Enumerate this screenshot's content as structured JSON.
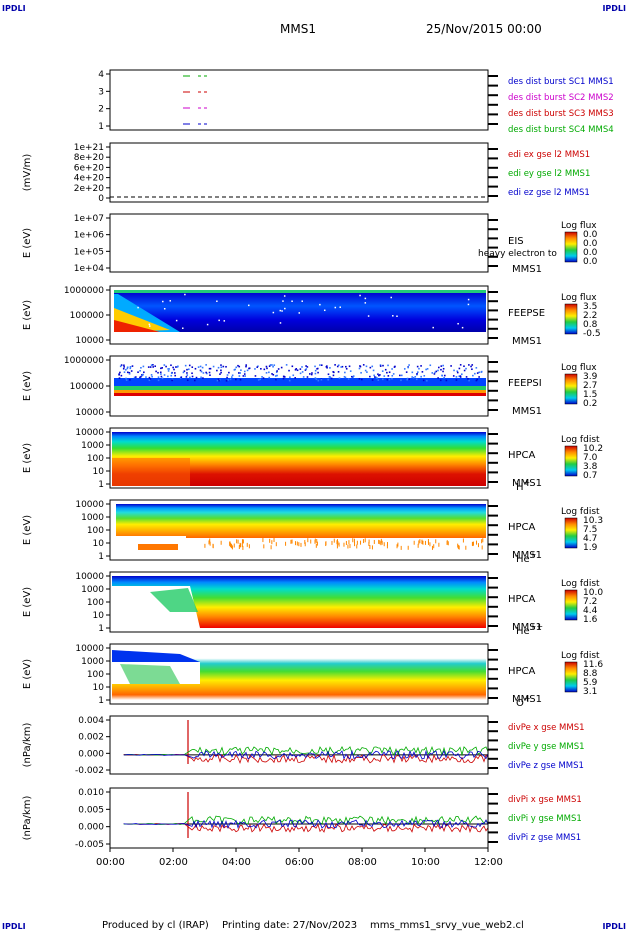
{
  "corner_labels": [
    "IPDLI",
    "IPDLI",
    "IPDLI",
    "IPDLI"
  ],
  "header": {
    "mission": "MMS1",
    "date": "25/Nov/2015 00:00"
  },
  "footer": {
    "produced_by": "Produced by cl (IRAP)",
    "printing_date": "Printing date: 27/Nov/2023",
    "file": "mms_mms1_srvy_vue_web2.cl"
  },
  "x_ticks": [
    "00:00",
    "02:00",
    "04:00",
    "06:00",
    "08:00",
    "10:00",
    "12:00"
  ],
  "chart_data": [
    {
      "type": "line",
      "panel": "dist-burst",
      "yticks": [
        "4",
        "3",
        "2",
        "1"
      ],
      "legend": [
        {
          "text": "des dist burst SC1 MMS1",
          "color": "#0000cc"
        },
        {
          "text": "des dist burst SC2 MMS2",
          "color": "#cc00cc"
        },
        {
          "text": "des dist burst SC3 MMS3",
          "color": "#cc0000"
        },
        {
          "text": "des dist burst SC4 MMS4",
          "color": "#00aa00"
        }
      ]
    },
    {
      "type": "line",
      "panel": "edi",
      "ylabel": "(mV/m)",
      "yticks": [
        "1e+21",
        "8e+20",
        "6e+20",
        "4e+20",
        "2e+20",
        "0"
      ],
      "legend": [
        {
          "text": "edi ex gse l2 MMS1",
          "color": "#cc0000"
        },
        {
          "text": "edi ey gse l2 MMS1",
          "color": "#00aa00"
        },
        {
          "text": "edi ez gse l2 MMS1",
          "color": "#0000cc"
        }
      ]
    },
    {
      "type": "heatmap",
      "panel": "eis",
      "ylabel": "E (eV)",
      "yticks": [
        "1e+07",
        "1e+06",
        "1e+05",
        "1e+04"
      ],
      "right_labels": [
        "EIS",
        "MMS1"
      ],
      "overlay_text": "heavy electron to",
      "colorbar": {
        "title": "Log flux",
        "ticks": [
          "0.0",
          "0.0",
          "0.0",
          "0.0"
        ]
      }
    },
    {
      "type": "heatmap",
      "panel": "feepse",
      "ylabel": "E (eV)",
      "yticks": [
        "1000000",
        "100000",
        "10000"
      ],
      "right_labels": [
        "FEEPSE",
        "MMS1"
      ],
      "colorbar": {
        "title": "Log flux",
        "ticks": [
          "3.5",
          "2.2",
          "0.8",
          "-0.5"
        ]
      }
    },
    {
      "type": "heatmap",
      "panel": "feepsi",
      "ylabel": "E (eV)",
      "yticks": [
        "1000000",
        "100000",
        "10000"
      ],
      "right_labels": [
        "FEEPSI",
        "MMS1"
      ],
      "colorbar": {
        "title": "Log flux",
        "ticks": [
          "3.9",
          "2.7",
          "1.5",
          "0.2"
        ]
      }
    },
    {
      "type": "heatmap",
      "panel": "hpca-h",
      "ylabel": "E (eV)",
      "yticks": [
        "10000",
        "1000",
        "100",
        "10",
        "1"
      ],
      "right_labels": [
        "HPCA",
        "MMS1"
      ],
      "species": {
        "base": "H",
        "sup": "+"
      },
      "colorbar": {
        "title": "Log fdist",
        "ticks": [
          "10.2",
          "7.0",
          "3.8",
          "0.7"
        ]
      }
    },
    {
      "type": "heatmap",
      "panel": "hpca-he",
      "ylabel": "E (eV)",
      "yticks": [
        "10000",
        "1000",
        "100",
        "10",
        "1"
      ],
      "right_labels": [
        "HPCA",
        "MMS1"
      ],
      "species": {
        "base": "He",
        "sup": "+"
      },
      "colorbar": {
        "title": "Log fdist",
        "ticks": [
          "10.3",
          "7.5",
          "4.7",
          "1.9"
        ]
      }
    },
    {
      "type": "heatmap",
      "panel": "hpca-he2",
      "ylabel": "E (eV)",
      "yticks": [
        "10000",
        "1000",
        "100",
        "10",
        "1"
      ],
      "right_labels": [
        "HPCA",
        "MMS1"
      ],
      "species": {
        "base": "He",
        "sup": "++"
      },
      "colorbar": {
        "title": "Log fdist",
        "ticks": [
          "10.0",
          "7.2",
          "4.4",
          "1.6"
        ]
      }
    },
    {
      "type": "heatmap",
      "panel": "hpca-o",
      "ylabel": "E (eV)",
      "yticks": [
        "10000",
        "1000",
        "100",
        "10",
        "1"
      ],
      "right_labels": [
        "HPCA",
        "MMS1"
      ],
      "species": {
        "base": "O",
        "sup": "+"
      },
      "colorbar": {
        "title": "Log fdist",
        "ticks": [
          "11.6",
          "8.8",
          "5.9",
          "3.1"
        ]
      }
    },
    {
      "type": "line",
      "panel": "divpe",
      "ylabel": "(nPa/km)",
      "yticks": [
        "0.004",
        "0.002",
        "0.000",
        "-0.002"
      ],
      "legend": [
        {
          "text": "divPe x gse MMS1",
          "color": "#cc0000"
        },
        {
          "text": "divPe y gse MMS1",
          "color": "#00aa00"
        },
        {
          "text": "divPe z gse MMS1",
          "color": "#0000cc"
        }
      ]
    },
    {
      "type": "line",
      "panel": "divpi",
      "ylabel": "(nPa/km)",
      "yticks": [
        "0.010",
        "0.005",
        "0.000",
        "-0.005"
      ],
      "legend": [
        {
          "text": "divPi x gse MMS1",
          "color": "#cc0000"
        },
        {
          "text": "divPi y gse MMS1",
          "color": "#00aa00"
        },
        {
          "text": "divPi z gse MMS1",
          "color": "#0000cc"
        }
      ]
    }
  ]
}
